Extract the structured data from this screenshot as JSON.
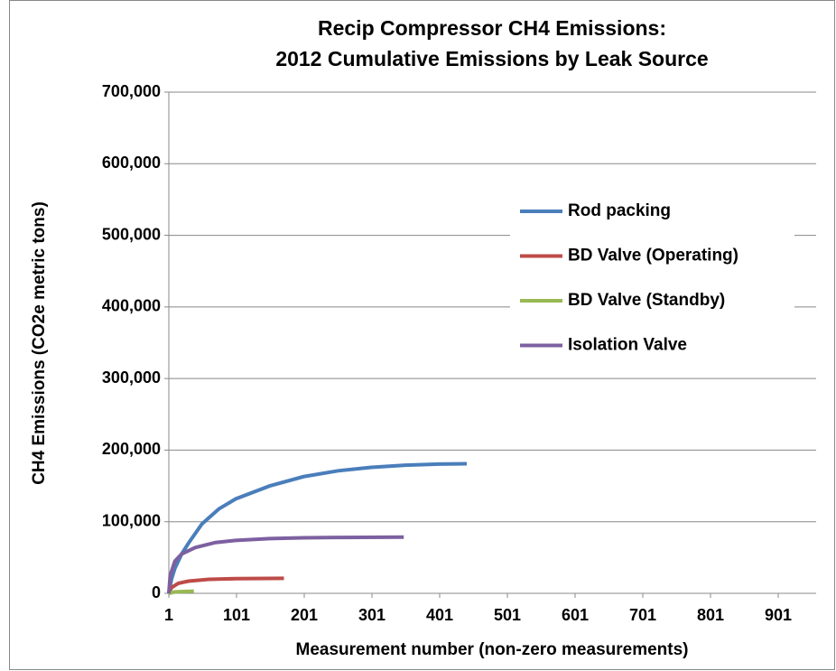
{
  "chart_data": {
    "type": "line",
    "title": [
      "Recip Compressor CH4 Emissions:",
      "2012 Cumulative Emissions by Leak Source"
    ],
    "x_label": "Measurement number (non-zero measurements)",
    "y_label": "CH4 Emissions (CO2e  metric tons)",
    "xlim": [
      1,
      957
    ],
    "xticks": [
      1,
      101,
      201,
      301,
      401,
      501,
      601,
      701,
      801,
      901
    ],
    "ylim": [
      0,
      700000
    ],
    "yticks": [
      0,
      {
        "value": 100000,
        "label": "100,000"
      },
      {
        "value": 200000,
        "label": "200,000"
      },
      {
        "value": 300000,
        "label": "300,000"
      },
      {
        "value": 400000,
        "label": "400,000"
      },
      {
        "value": 500000,
        "label": "500,000"
      },
      {
        "value": 600000,
        "label": "600,000"
      },
      {
        "value": 700000,
        "label": "700,000"
      }
    ],
    "grid": true,
    "legend": "right",
    "series": [
      {
        "name": "Rod packing",
        "color": "#4a7ebb",
        "x": [
          1,
          5,
          10,
          20,
          30,
          50,
          75,
          100,
          150,
          200,
          250,
          300,
          350,
          400,
          441
        ],
        "values": [
          0,
          20000,
          35000,
          55000,
          70000,
          97000,
          118000,
          132000,
          150000,
          163000,
          171000,
          176000,
          179000,
          180500,
          181000
        ]
      },
      {
        "name": "BD Valve (Operating)",
        "color": "#be4b48",
        "x": [
          1,
          5,
          15,
          30,
          60,
          100,
          171
        ],
        "values": [
          0,
          8000,
          14000,
          17000,
          19500,
          20500,
          21000
        ]
      },
      {
        "name": "BD Valve (Standby)",
        "color": "#98b954",
        "x": [
          1,
          10,
          38
        ],
        "values": [
          0,
          2000,
          3000
        ]
      },
      {
        "name": "Isolation Valve",
        "color": "#7d60a0",
        "x": [
          1,
          3,
          10,
          20,
          40,
          70,
          100,
          150,
          200,
          250,
          348
        ],
        "values": [
          0,
          25000,
          45000,
          55000,
          64000,
          71000,
          74000,
          76500,
          77500,
          78000,
          78500
        ]
      }
    ]
  }
}
